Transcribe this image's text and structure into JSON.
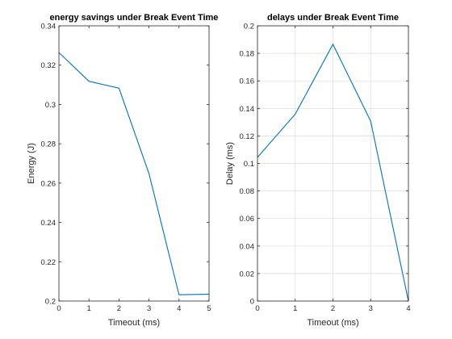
{
  "figure": {
    "background": "#ffffff"
  },
  "chart_data": [
    {
      "type": "line",
      "title": "energy savings under Break Event Time",
      "xlabel": "Timeout (ms)",
      "ylabel": "Energy (J)",
      "xlim": [
        0,
        5
      ],
      "ylim": [
        0.2,
        0.34
      ],
      "xticks": [
        0,
        1,
        2,
        3,
        4,
        5
      ],
      "xtick_labels": [
        "0",
        "1",
        "2",
        "3",
        "4",
        "5"
      ],
      "yticks": [
        0.2,
        0.22,
        0.24,
        0.26,
        0.28,
        0.3,
        0.32,
        0.34
      ],
      "ytick_labels": [
        "0.2",
        "0.22",
        "0.24",
        "0.26",
        "0.28",
        "0.3",
        "0.32",
        "0.34"
      ],
      "grid": false,
      "series": [
        {
          "x": [
            0,
            1,
            2,
            3,
            4,
            5
          ],
          "values": [
            0.3264,
            0.3118,
            0.3083,
            0.2648,
            0.2032,
            0.2035
          ],
          "color": "#0072bd"
        }
      ]
    },
    {
      "type": "line",
      "title": "delays under Break Event Time",
      "xlabel": "Timeout (ms)",
      "ylabel": "Delay (ms)",
      "xlim": [
        0,
        4
      ],
      "ylim": [
        0,
        0.2
      ],
      "xticks": [
        0,
        1,
        2,
        3,
        4
      ],
      "xtick_labels": [
        "0",
        "1",
        "2",
        "3",
        "4"
      ],
      "yticks": [
        0,
        0.02,
        0.04,
        0.06,
        0.08,
        0.1,
        0.12,
        0.14,
        0.16,
        0.18,
        0.2
      ],
      "ytick_labels": [
        "0",
        "0.02",
        "0.04",
        "0.06",
        "0.08",
        "0.1",
        "0.12",
        "0.14",
        "0.16",
        "0.18",
        "0.2"
      ],
      "grid": true,
      "series": [
        {
          "x": [
            0,
            1,
            2,
            3,
            4
          ],
          "values": [
            0.1045,
            0.1358,
            0.1866,
            0.1307,
            0.0
          ],
          "color": "#0072bd"
        }
      ]
    }
  ]
}
